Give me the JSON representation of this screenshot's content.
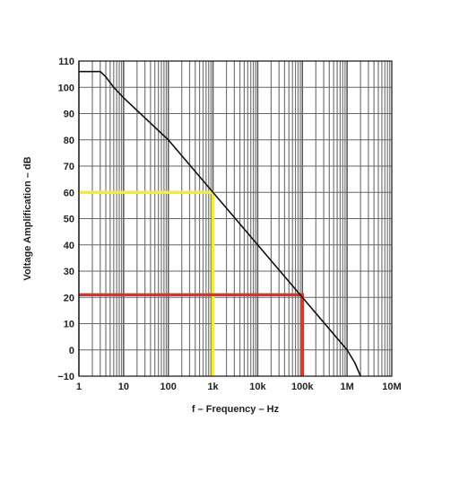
{
  "chart_data": {
    "type": "line",
    "title": "",
    "xlabel": "f – Frequency – Hz",
    "ylabel": "Voltage Amplification – dB",
    "x_scale": "log",
    "xlim": [
      1,
      10000000
    ],
    "ylim": [
      -10,
      110
    ],
    "grid": true,
    "legend": "none",
    "x_ticks": [
      {
        "value": 1,
        "label": "1"
      },
      {
        "value": 10,
        "label": "10"
      },
      {
        "value": 100,
        "label": "100"
      },
      {
        "value": 1000,
        "label": "1k"
      },
      {
        "value": 10000,
        "label": "10k"
      },
      {
        "value": 100000,
        "label": "100k"
      },
      {
        "value": 1000000,
        "label": "1M"
      },
      {
        "value": 10000000,
        "label": "10M"
      }
    ],
    "y_ticks": [
      {
        "value": -10,
        "label": "−10"
      },
      {
        "value": 0,
        "label": "0"
      },
      {
        "value": 10,
        "label": "10"
      },
      {
        "value": 20,
        "label": "20"
      },
      {
        "value": 30,
        "label": "30"
      },
      {
        "value": 40,
        "label": "40"
      },
      {
        "value": 50,
        "label": "50"
      },
      {
        "value": 60,
        "label": "60"
      },
      {
        "value": 70,
        "label": "70"
      },
      {
        "value": 80,
        "label": "80"
      },
      {
        "value": 90,
        "label": "90"
      },
      {
        "value": 100,
        "label": "100"
      },
      {
        "value": 110,
        "label": "110"
      }
    ],
    "series": [
      {
        "color": "#111111",
        "x": [
          1,
          2,
          3,
          4,
          6,
          10,
          100,
          1000,
          10000,
          100000,
          500000,
          1000000,
          1500000,
          2000000
        ],
        "y": [
          106,
          106,
          106,
          104,
          100,
          96,
          80,
          60,
          40,
          20,
          6,
          0,
          -5,
          -10
        ]
      }
    ],
    "annotations": [
      {
        "color": "#f2ec3a",
        "x": [
          1,
          1000,
          1000
        ],
        "y": [
          60,
          60,
          -10
        ]
      },
      {
        "color": "#d9332a",
        "x": [
          1,
          100000,
          100000
        ],
        "y": [
          21,
          21,
          -10
        ]
      }
    ]
  }
}
